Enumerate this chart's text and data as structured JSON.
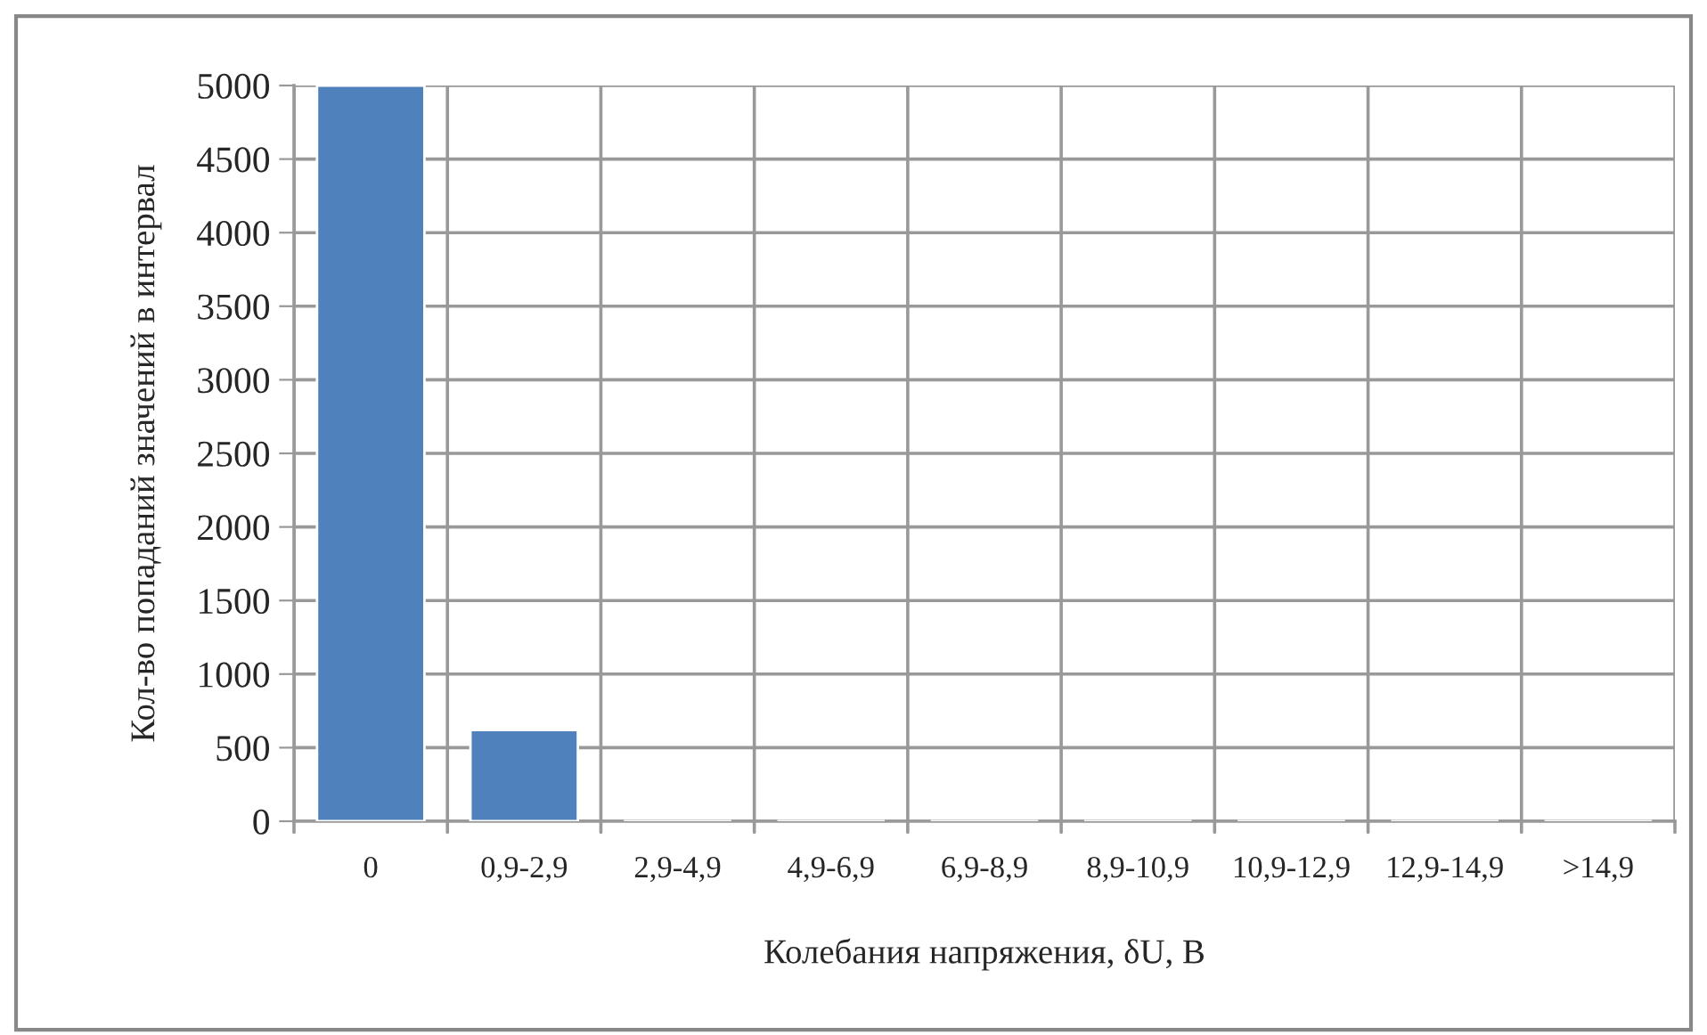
{
  "chart_data": {
    "type": "bar",
    "xlabel": "Колебания напряжения, δU, В",
    "ylabel": "Кол-во попаданий значений в интервал",
    "categories": [
      "0",
      "0,9-2,9",
      "2,9-4,9",
      "4,9-6,9",
      "6,9-8,9",
      "8,9-10,9",
      "10,9-12,9",
      "12,9-14,9",
      ">14,9"
    ],
    "values": [
      5000,
      620,
      0,
      0,
      0,
      0,
      0,
      0,
      0
    ],
    "color": "#4f81bd",
    "ylim": [
      0,
      5000
    ],
    "yticks": [
      0,
      500,
      1000,
      1500,
      2000,
      2500,
      3000,
      3500,
      4000,
      4500,
      5000
    ],
    "grid": true
  }
}
